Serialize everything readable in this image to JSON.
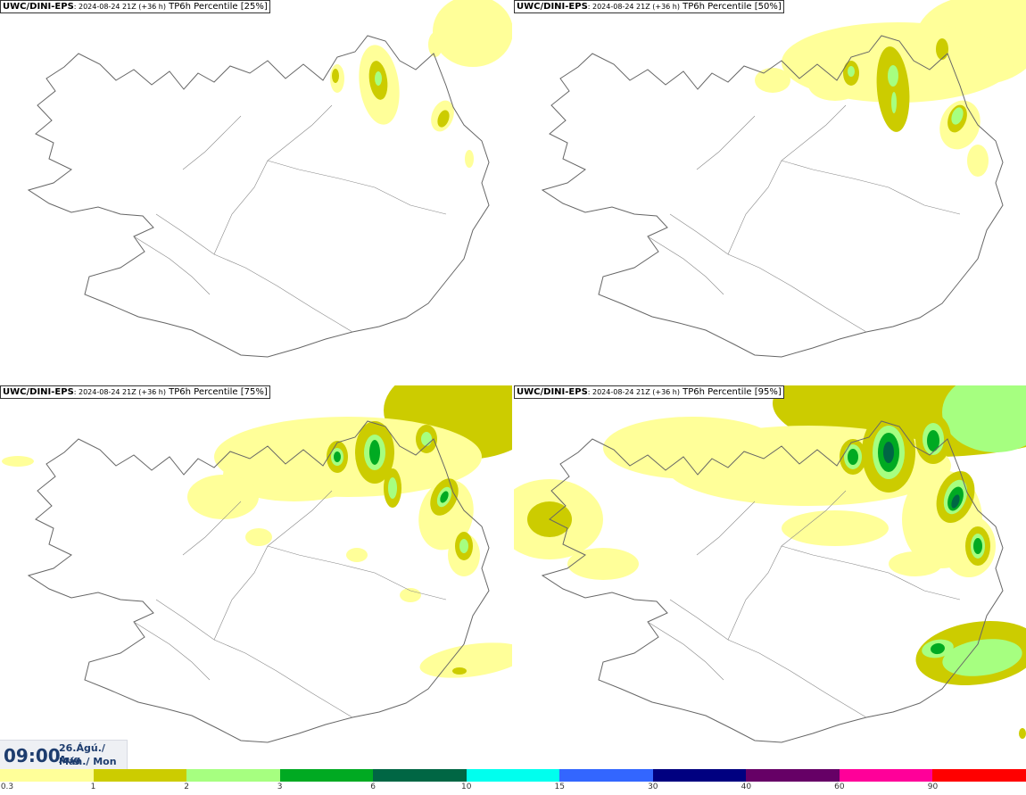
{
  "panels": [
    {
      "model": "UWC/DINI-EPS",
      "run": ": 2024-08-24 21Z (+36 h)",
      "field": " TP6h Percentile [25%]",
      "percentile": 25
    },
    {
      "model": "UWC/DINI-EPS",
      "run": ": 2024-08-24 21Z (+36 h)",
      "field": " TP6h Percentile [50%]",
      "percentile": 50
    },
    {
      "model": "UWC/DINI-EPS",
      "run": ": 2024-08-24 21Z (+36 h)",
      "field": " TP6h Percentile [75%]",
      "percentile": 75
    },
    {
      "model": "UWC/DINI-EPS",
      "run": ": 2024-08-24 21Z (+36 h)",
      "field": " TP6h Percentile [95%]",
      "percentile": 95
    }
  ],
  "valid_time": {
    "time": "09:00",
    "date_line1": "26.Ágú./ Aug",
    "date_line2": "Mán./ Mon"
  },
  "legend": {
    "ticks": [
      "0.3",
      "1",
      "2",
      "3",
      "6",
      "10",
      "15",
      "30",
      "40",
      "60",
      "90"
    ],
    "colors": [
      "#ffff99",
      "#cccc00",
      "#a6ff80",
      "#00aa22",
      "#006644",
      "#00ffee",
      "#3366ff",
      "#000080",
      "#660066",
      "#ff0099",
      "#ff0000"
    ]
  },
  "colors": {
    "coastline": "#666666",
    "roads": "#888888"
  }
}
